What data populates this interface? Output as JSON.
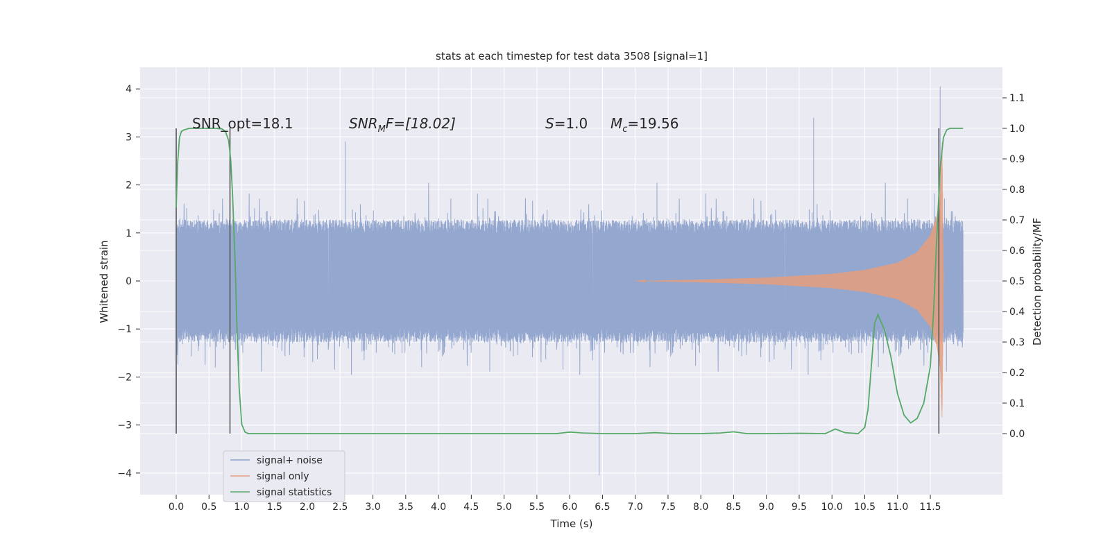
{
  "chart_data": {
    "type": "line",
    "title": "stats at each timestep for test data 3508 [signal=1]",
    "xlabel": "Time (s)",
    "ylabel": "Whitened strain",
    "y2label": "Detection probability/MF",
    "xlim": [
      -0.55,
      12.6
    ],
    "ylim": [
      -4.45,
      4.45
    ],
    "y2lim": [
      -0.2,
      1.2
    ],
    "x_ticks": [
      "0.0",
      "0.5",
      "1.0",
      "1.5",
      "2.0",
      "2.5",
      "3.0",
      "3.5",
      "4.0",
      "4.5",
      "5.0",
      "5.5",
      "6.0",
      "6.5",
      "7.0",
      "7.5",
      "8.0",
      "8.5",
      "9.0",
      "9.5",
      "10.0",
      "10.5",
      "11.0",
      "11.5"
    ],
    "y_ticks": [
      "4",
      "3",
      "2",
      "1",
      "0",
      "−1",
      "−2",
      "−3",
      "−4"
    ],
    "y2_ticks": [
      "1.1",
      "1.0",
      "0.9",
      "0.8",
      "0.7",
      "0.6",
      "0.5",
      "0.4",
      "0.3",
      "0.2",
      "0.1",
      "0.0"
    ],
    "grid": true,
    "legend_position": "bottom-left",
    "annotations": {
      "snr_opt": "SNR_opt=18.1",
      "snr_mf_main": "SNR",
      "snr_mf_sub": "M",
      "snr_mf_tail": "F=[18.02]",
      "s_label": "S",
      "s_value": "=1.0",
      "mc_label": "M",
      "mc_sub": "c",
      "mc_value": "=19.56"
    },
    "series": [
      {
        "name": "signal+ noise",
        "color": "#8fa3cc",
        "description_points": {
          "t_start": 0.0,
          "t_end": 12.0,
          "typical_band": [
            -1.25,
            1.25
          ],
          "extremes": [
            [
              6.45,
              -4.05
            ],
            [
              11.65,
              4.05
            ],
            [
              9.72,
              3.4
            ],
            [
              2.58,
              2.9
            ],
            [
              0.0,
              -2.7
            ]
          ]
        }
      },
      {
        "name": "signal only",
        "color": "#e59d7c",
        "envelope": [
          [
            7.0,
            0.0
          ],
          [
            8.0,
            0.03
          ],
          [
            9.0,
            0.07
          ],
          [
            10.0,
            0.15
          ],
          [
            10.5,
            0.23
          ],
          [
            11.0,
            0.38
          ],
          [
            11.3,
            0.6
          ],
          [
            11.5,
            0.95
          ],
          [
            11.6,
            1.35
          ],
          [
            11.65,
            1.8
          ],
          [
            11.68,
            2.9
          ],
          [
            11.7,
            0.0
          ]
        ]
      },
      {
        "name": "signal statistics",
        "color": "#55a868",
        "x": [
          0.0,
          0.02,
          0.05,
          0.08,
          0.12,
          0.2,
          0.3,
          0.4,
          0.5,
          0.6,
          0.7,
          0.75,
          0.8,
          0.83,
          0.86,
          0.9,
          0.93,
          0.96,
          1.0,
          1.05,
          1.1,
          1.5,
          2.0,
          3.0,
          4.0,
          5.0,
          5.5,
          5.8,
          6.0,
          6.2,
          6.5,
          7.0,
          7.3,
          7.6,
          8.0,
          8.3,
          8.5,
          8.7,
          9.0,
          9.5,
          9.9,
          10.05,
          10.2,
          10.4,
          10.5,
          10.55,
          10.6,
          10.65,
          10.7,
          10.8,
          10.9,
          11.0,
          11.1,
          11.2,
          11.3,
          11.4,
          11.5,
          11.55,
          11.6,
          11.65,
          11.7,
          11.75,
          11.8,
          11.9,
          12.0
        ],
        "y": [
          0.74,
          0.88,
          0.97,
          0.99,
          0.995,
          1.0,
          1.0,
          1.0,
          1.0,
          1.0,
          0.998,
          0.99,
          0.96,
          0.9,
          0.78,
          0.55,
          0.32,
          0.15,
          0.03,
          0.005,
          0.0,
          0.0,
          0.0,
          0.0,
          0.0,
          0.0,
          0.0,
          0.0,
          0.005,
          0.002,
          0.0,
          0.0,
          0.003,
          0.0,
          0.0,
          0.002,
          0.006,
          0.0,
          0.0,
          0.001,
          0.0,
          0.015,
          0.003,
          0.0,
          0.02,
          0.08,
          0.22,
          0.36,
          0.39,
          0.34,
          0.25,
          0.13,
          0.06,
          0.035,
          0.05,
          0.1,
          0.22,
          0.4,
          0.65,
          0.87,
          0.97,
          0.995,
          1.0,
          1.0,
          1.0
        ]
      }
    ],
    "vertical_markers": [
      {
        "x": 0.0,
        "y2_from": 0.0,
        "y2_to": 1.0
      },
      {
        "x": 0.82,
        "y2_from": 0.0,
        "y2_to": 1.0
      },
      {
        "x": 11.63,
        "y2_from": 0.0,
        "y2_to": 1.0
      }
    ]
  }
}
